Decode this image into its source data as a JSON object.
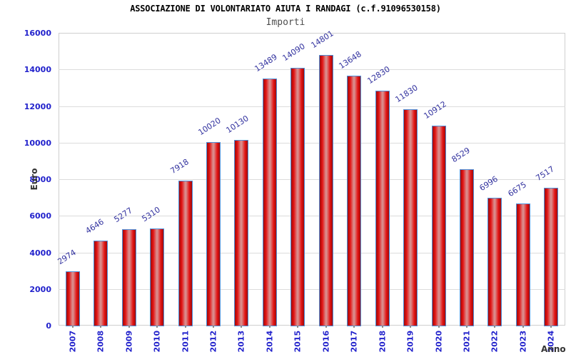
{
  "header": {
    "title": "ASSOCIAZIONE DI VOLONTARIATO AIUTA I RANDAGI (c.f.91096530158)",
    "subtitle": "Importi"
  },
  "chart_data": {
    "type": "bar",
    "title": "ASSOCIAZIONE DI VOLONTARIATO AIUTA I RANDAGI (c.f.91096530158)",
    "subtitle": "Importi",
    "xlabel": "Anno",
    "ylabel": "Euro",
    "categories": [
      "2007",
      "2008",
      "2009",
      "2010",
      "2011",
      "2012",
      "2013",
      "2014",
      "2015",
      "2016",
      "2017",
      "2018",
      "2019",
      "2020",
      "2021",
      "2022",
      "2023",
      "2024"
    ],
    "values": [
      2974,
      4646,
      5277,
      5310,
      7918,
      10020,
      10130,
      13489,
      14090,
      14801,
      13648,
      12830,
      11830,
      10912,
      8529,
      6996,
      6675,
      7517
    ],
    "ylim": [
      0,
      16000
    ],
    "ytick_step": 2000,
    "yticks": [
      0,
      2000,
      4000,
      6000,
      8000,
      10000,
      12000,
      14000,
      16000
    ],
    "grid": true,
    "banded_background": true,
    "legend": "none",
    "colors": {
      "bar_fill_edge": "#9e0b0b",
      "bar_fill_mid": "#e31212",
      "bar_fill_center": "#da8a8a",
      "bar_border": "#4e8fd9",
      "axis_tick_label": "#2222cc",
      "value_label": "#32329f",
      "band_gray": "#f2f2f2",
      "gridline": "#dcdcdc",
      "title": "#000000",
      "subtitle": "#4d4d4d",
      "axis_title": "#333333",
      "background": "#ffffff"
    }
  }
}
